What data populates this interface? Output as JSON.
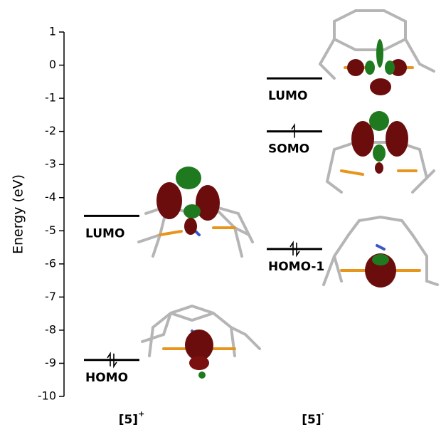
{
  "chart_data": {
    "type": "energy-level",
    "ylabel": "Energy (eV)",
    "ylim": [
      -10,
      1
    ],
    "yticks": [
      -10,
      -9,
      -8,
      -7,
      -6,
      -5,
      -4,
      -3,
      -2,
      -1,
      0,
      1
    ],
    "color": "#000000",
    "groups": [
      {
        "name": "[5]",
        "superscript": "+",
        "levels": [
          {
            "label": "LUMO",
            "value": -4.55,
            "electrons": 0
          },
          {
            "label": "HOMO",
            "value": -8.9,
            "electrons": 2
          }
        ]
      },
      {
        "name": "[5]",
        "superscript": "·",
        "levels": [
          {
            "label": "LUMO",
            "value": -0.4,
            "electrons": 0
          },
          {
            "label": "SOMO",
            "value": -2.0,
            "electrons": 1
          },
          {
            "label": "HOMO-1",
            "value": -5.55,
            "electrons": 2
          }
        ]
      }
    ]
  }
}
